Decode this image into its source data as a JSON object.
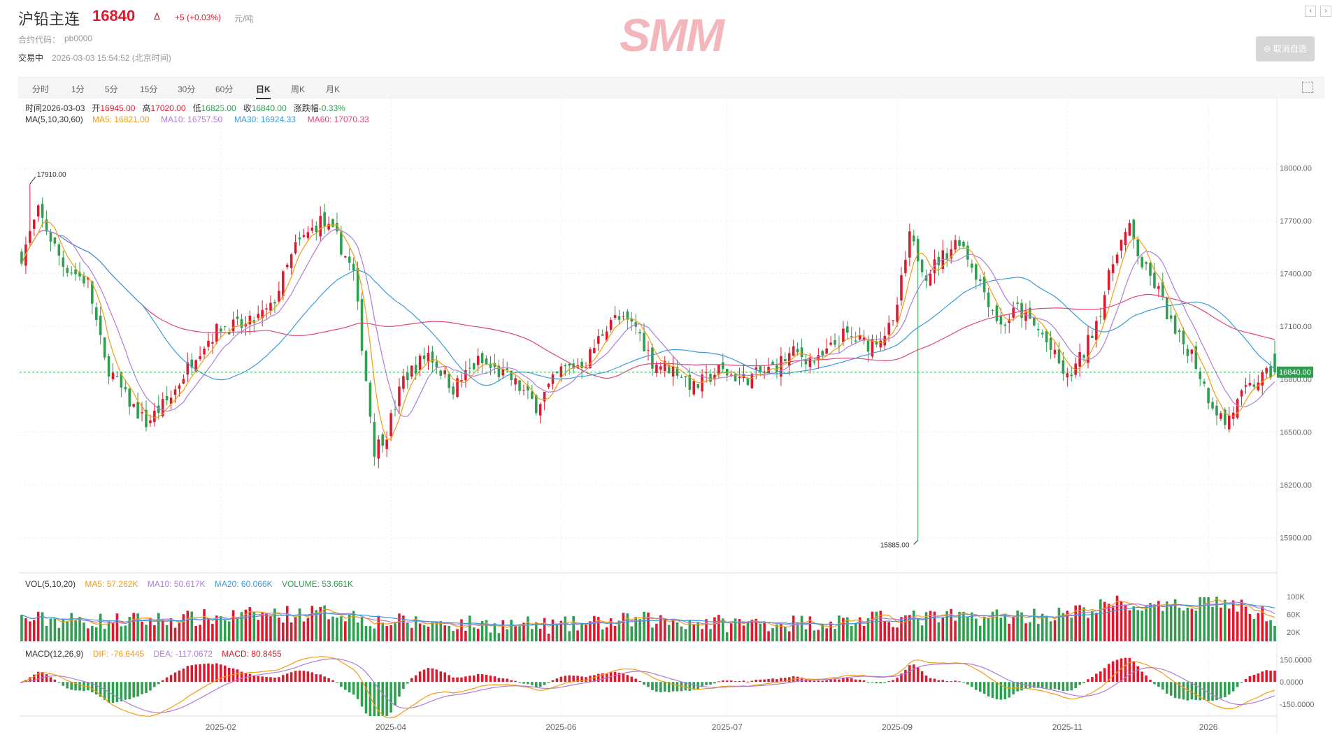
{
  "header": {
    "name": "沪铅主连",
    "price": "16840",
    "change": "+5 (+0.03%)",
    "unit": "元/吨",
    "code_label": "合约代码：",
    "code": "pb0000",
    "status": "交易中",
    "time": "2026-03-03 15:54:52 (北京时间)",
    "logo": "SMM",
    "cancel_label": "取消自选"
  },
  "tabs": [
    "分时",
    "1分",
    "5分",
    "15分",
    "30分",
    "60分",
    "日K",
    "周K",
    "月K"
  ],
  "active_tab": "日K",
  "ohlc_info": {
    "time": "时间2026-03-03",
    "open_label": "开",
    "open": "16945.00",
    "high_label": "高",
    "high": "17020.00",
    "low_label": "低",
    "low": "16825.00",
    "close_label": "收",
    "close": "16840.00",
    "chg_label": "涨跌幅",
    "chg": "-0.33%"
  },
  "ma_info": {
    "label": "MA(5,10,30,60)",
    "ma5": "MA5: 16821.00",
    "ma10": "MA10: 16757.50",
    "ma30": "MA30: 16924.33",
    "ma60": "MA60: 17070.33"
  },
  "vol_info": {
    "label": "VOL(5,10,20)",
    "ma5": "MA5: 57.262K",
    "ma10": "MA10: 50.617K",
    "ma20": "MA20: 60.066K",
    "volume": "VOLUME: 53.661K"
  },
  "macd_info": {
    "label": "MACD(12,26,9)",
    "dif": "DIF: -76.6445",
    "dea": "DEA: -117.0672",
    "macd": "MACD: 80.8455"
  },
  "colors": {
    "up": "#e0182d",
    "down": "#2e9e4f",
    "ma5": "#f39c12",
    "ma10": "#b07cd8",
    "ma30": "#3a9bdc",
    "ma60": "#e0457b",
    "vol_ma20": "#3a9bdc"
  },
  "chart_data": {
    "type": "candlestick",
    "x_ticks": [
      "2025-02",
      "2025-04",
      "2025-06",
      "2025-07",
      "2025-09",
      "2025-11",
      "2026"
    ],
    "y_ticks": [
      "18000.00",
      "17700.00",
      "17400.00",
      "17100.00",
      "16800.00",
      "16500.00",
      "16200.00",
      "15900.00"
    ],
    "y_range": [
      15700,
      18200
    ],
    "last_price_label": "16840.00",
    "last_price": 16840,
    "max_label": "17910.00",
    "max_value": 17910,
    "min_label": "15885.00",
    "min_value": 15885,
    "vol_ticks": [
      "100K",
      "60K",
      "20K"
    ],
    "vol_range": [
      0,
      125
    ],
    "macd_ticks": [
      "150.0000",
      "0.0000",
      "-150.0000"
    ],
    "macd_range": [
      -230,
      180
    ],
    "close_anchors": [
      [
        0,
        17500
      ],
      [
        4,
        17750
      ],
      [
        10,
        17450
      ],
      [
        16,
        17350
      ],
      [
        20,
        16900
      ],
      [
        25,
        16700
      ],
      [
        30,
        16550
      ],
      [
        36,
        16700
      ],
      [
        42,
        16950
      ],
      [
        48,
        17100
      ],
      [
        54,
        17100
      ],
      [
        60,
        17200
      ],
      [
        66,
        17550
      ],
      [
        72,
        17700
      ],
      [
        76,
        17600
      ],
      [
        80,
        17400
      ],
      [
        85,
        16400
      ],
      [
        88,
        16500
      ],
      [
        92,
        16800
      ],
      [
        98,
        16950
      ],
      [
        104,
        16750
      ],
      [
        110,
        16900
      ],
      [
        118,
        16800
      ],
      [
        124,
        16650
      ],
      [
        130,
        16850
      ],
      [
        136,
        16900
      ],
      [
        142,
        17150
      ],
      [
        148,
        17100
      ],
      [
        152,
        16900
      ],
      [
        158,
        16850
      ],
      [
        162,
        16750
      ],
      [
        168,
        16850
      ],
      [
        174,
        16800
      ],
      [
        180,
        16850
      ],
      [
        186,
        16950
      ],
      [
        192,
        16900
      ],
      [
        198,
        17050
      ],
      [
        204,
        17000
      ],
      [
        210,
        17100
      ],
      [
        214,
        17600
      ],
      [
        218,
        17400
      ],
      [
        222,
        17500
      ],
      [
        226,
        17600
      ],
      [
        232,
        17300
      ],
      [
        236,
        17100
      ],
      [
        240,
        17200
      ],
      [
        246,
        17050
      ],
      [
        252,
        16800
      ],
      [
        256,
        16950
      ],
      [
        260,
        17200
      ],
      [
        264,
        17550
      ],
      [
        267,
        17650
      ],
      [
        270,
        17450
      ],
      [
        274,
        17300
      ],
      [
        278,
        17050
      ],
      [
        282,
        16950
      ],
      [
        286,
        16700
      ],
      [
        290,
        16550
      ],
      [
        294,
        16700
      ],
      [
        298,
        16800
      ],
      [
        302,
        16840
      ]
    ],
    "volume_anchors": [
      [
        0,
        50
      ],
      [
        20,
        45
      ],
      [
        40,
        50
      ],
      [
        60,
        60
      ],
      [
        76,
        65
      ],
      [
        86,
        45
      ],
      [
        100,
        40
      ],
      [
        130,
        35
      ],
      [
        150,
        48
      ],
      [
        170,
        40
      ],
      [
        190,
        42
      ],
      [
        210,
        50
      ],
      [
        232,
        55
      ],
      [
        252,
        60
      ],
      [
        264,
        85
      ],
      [
        276,
        70
      ],
      [
        286,
        95
      ],
      [
        302,
        54
      ]
    ]
  }
}
